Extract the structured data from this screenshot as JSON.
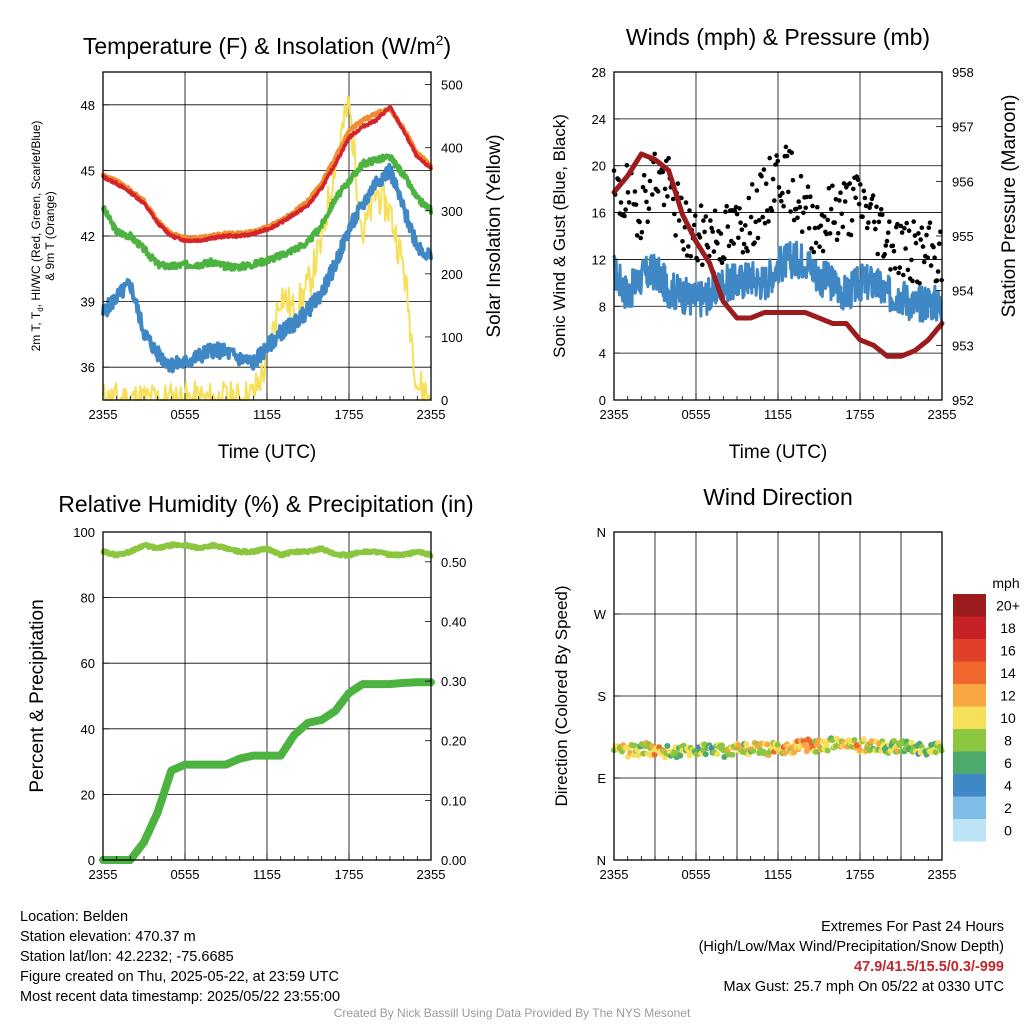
{
  "chart_data": [
    {
      "type": "line",
      "title": "Temperature (F) & Insolation (W/m²)",
      "title_main": "Temperature (F) & Insolation (W/m",
      "title_sup": "2",
      "title_end": ")",
      "xlabel": "Time (UTC)",
      "ylabel_line1": "2m T, T",
      "ylabel_sub": "d",
      "ylabel_line1_end": ", HI/WC (Red, Green, Scarlet/Blue)",
      "ylabel_line2": "& 9m T (Orange)",
      "y2label": "Solar Insolation (Yellow)",
      "x_ticks": [
        "2355",
        "0555",
        "1155",
        "1755",
        "2355"
      ],
      "y_ticks": [
        "36",
        "39",
        "42",
        "45",
        "48"
      ],
      "y2_ticks": [
        "0",
        "100",
        "200",
        "300",
        "400",
        "500"
      ],
      "ylim": [
        34.5,
        49.5
      ],
      "y2lim": [
        0,
        520
      ],
      "x_hours": [
        0,
        1,
        2,
        3,
        4,
        5,
        6,
        7,
        8,
        9,
        10,
        11,
        12,
        13,
        14,
        15,
        16,
        17,
        18,
        19,
        20,
        21,
        22,
        23,
        24
      ],
      "series": [
        {
          "key": "temperature",
          "color": "#d7242a",
          "values": [
            44.7,
            44.4,
            44.0,
            43.5,
            42.6,
            42.0,
            41.8,
            41.8,
            41.9,
            42.0,
            42.0,
            42.1,
            42.3,
            42.6,
            43.0,
            43.4,
            44.2,
            45.3,
            46.5,
            47.0,
            47.3,
            47.9,
            46.8,
            45.6,
            45.1
          ]
        },
        {
          "key": "temperature-9m",
          "color": "#f08c32",
          "values": [
            44.8,
            44.5,
            44.1,
            43.6,
            42.7,
            42.1,
            41.9,
            41.9,
            42.0,
            42.1,
            42.1,
            42.2,
            42.4,
            42.7,
            43.1,
            43.6,
            44.4,
            45.6,
            46.8,
            47.3,
            47.6,
            47.8,
            46.9,
            45.8,
            45.2
          ]
        },
        {
          "key": "dewpoint",
          "color": "#3f88c5",
          "values": [
            38.5,
            39.2,
            39.8,
            37.6,
            36.6,
            36.1,
            36.2,
            36.5,
            36.8,
            36.7,
            36.4,
            36.2,
            36.9,
            37.6,
            38.0,
            38.6,
            39.4,
            40.7,
            42.3,
            43.4,
            44.5,
            45.0,
            43.2,
            41.6,
            41.0
          ]
        },
        {
          "key": "heat-index-wind-chill",
          "color": "#4cb340",
          "values": [
            43.3,
            42.2,
            42.0,
            41.4,
            40.7,
            40.6,
            40.7,
            40.7,
            40.8,
            40.6,
            40.6,
            40.7,
            40.9,
            41.1,
            41.4,
            41.7,
            42.5,
            43.7,
            44.5,
            45.3,
            45.5,
            45.6,
            44.8,
            43.7,
            43.2
          ]
        },
        {
          "key": "solar-insolation",
          "color": "#f6e05a",
          "axis": "right",
          "values": [
            0,
            0,
            0,
            0,
            0,
            0,
            0,
            0,
            0,
            0,
            0,
            8,
            60,
            170,
            140,
            180,
            250,
            380,
            470,
            260,
            330,
            300,
            210,
            25,
            5
          ]
        }
      ]
    },
    {
      "type": "line",
      "title": "Winds (mph) & Pressure (mb)",
      "xlabel": "Time (UTC)",
      "ylabel": "Sonic Wind & Gust (Blue, Black)",
      "y2label": "Station Pressure (Maroon)",
      "x_ticks": [
        "2355",
        "0555",
        "1155",
        "1755",
        "2355"
      ],
      "y_ticks": [
        "0",
        "4",
        "8",
        "12",
        "16",
        "20",
        "24",
        "28"
      ],
      "y2_ticks": [
        "952",
        "953",
        "954",
        "955",
        "956",
        "957",
        "958"
      ],
      "ylim": [
        0,
        28
      ],
      "y2lim": [
        952,
        958
      ],
      "x_hours": [
        0,
        1,
        2,
        3,
        4,
        5,
        6,
        7,
        8,
        9,
        10,
        11,
        12,
        13,
        14,
        15,
        16,
        17,
        18,
        19,
        20,
        21,
        22,
        23,
        24
      ],
      "series": [
        {
          "key": "sonic-wind",
          "color": "#3f88c5",
          "values": [
            11.0,
            9.0,
            10.5,
            11.0,
            9.5,
            9.0,
            8.5,
            9.0,
            10.0,
            10.0,
            10.5,
            10.0,
            11.5,
            12.0,
            12.0,
            10.5,
            10.0,
            9.0,
            10.0,
            10.0,
            9.0,
            9.0,
            8.0,
            8.5,
            8.0
          ]
        },
        {
          "key": "gust",
          "color": "#000000",
          "values": [
            17.0,
            17.5,
            16.5,
            19.5,
            18.0,
            15.0,
            13.5,
            14.5,
            14.0,
            14.5,
            15.5,
            17.0,
            19.5,
            18.5,
            16.0,
            15.0,
            16.0,
            16.5,
            17.0,
            15.5,
            14.0,
            13.0,
            12.5,
            12.5,
            12.0
          ]
        },
        {
          "key": "station-pressure",
          "color": "#9b1b1e",
          "axis": "right",
          "values": [
            955.8,
            956.1,
            956.5,
            956.4,
            956.2,
            955.4,
            954.9,
            954.5,
            953.8,
            953.5,
            953.5,
            953.6,
            953.6,
            953.6,
            953.6,
            953.5,
            953.4,
            953.4,
            953.1,
            953.0,
            952.8,
            952.8,
            952.9,
            953.1,
            953.4
          ]
        }
      ]
    },
    {
      "type": "line",
      "title": "Relative Humidity (%) & Precipitation (in)",
      "xlabel": "",
      "ylabel": "Percent & Precipitation",
      "x_ticks": [
        "2355",
        "0555",
        "1155",
        "1755",
        "2355"
      ],
      "y_ticks": [
        "0",
        "20",
        "40",
        "60",
        "80",
        "100"
      ],
      "y2_ticks": [
        "0.00",
        "0.10",
        "0.20",
        "0.30",
        "0.40",
        "0.50"
      ],
      "ylim": [
        0,
        100
      ],
      "y2lim": [
        0,
        0.55
      ],
      "x_hours": [
        0,
        1,
        2,
        3,
        4,
        5,
        6,
        7,
        8,
        9,
        10,
        11,
        12,
        13,
        14,
        15,
        16,
        17,
        18,
        19,
        20,
        21,
        22,
        23,
        24
      ],
      "series": [
        {
          "key": "relative-humidity",
          "color": "#8cc63f",
          "values": [
            94,
            93,
            94,
            96,
            95,
            96,
            96,
            95,
            96,
            95,
            94,
            94,
            95,
            93,
            94,
            94,
            95,
            93,
            93,
            94,
            94,
            93,
            93,
            94,
            93
          ]
        },
        {
          "key": "precipitation",
          "color": "#4cb340",
          "axis": "right",
          "values": [
            0.0,
            0.0,
            0.0,
            0.03,
            0.08,
            0.15,
            0.16,
            0.16,
            0.16,
            0.16,
            0.17,
            0.175,
            0.175,
            0.175,
            0.21,
            0.23,
            0.235,
            0.25,
            0.28,
            0.295,
            0.295,
            0.295,
            0.297,
            0.298,
            0.298
          ]
        }
      ]
    },
    {
      "type": "scatter",
      "title": "Wind Direction",
      "xlabel": "",
      "ylabel": "Direction (Colored By Speed)",
      "x_ticks": [
        "2355",
        "0555",
        "1155",
        "1755",
        "2355"
      ],
      "y_ticks": [
        "N",
        "E",
        "S",
        "W",
        "N"
      ],
      "ylim": [
        0,
        360
      ],
      "direction_deg_hourly": [
        118,
        120,
        122,
        121,
        119,
        120,
        121,
        122,
        120,
        121,
        122,
        121,
        123,
        124,
        126,
        125,
        127,
        128,
        126,
        125,
        124,
        125,
        123,
        122,
        122
      ],
      "speed_mph_hourly": [
        9,
        11,
        10,
        12,
        10,
        9,
        9,
        8,
        10,
        11,
        10,
        11,
        12,
        12,
        13,
        11,
        10,
        11,
        12,
        10,
        9,
        10,
        8,
        9,
        8
      ],
      "colorbar": {
        "unit": "mph",
        "labels": [
          "20+",
          "18",
          "16",
          "14",
          "12",
          "10",
          "8",
          "6",
          "4",
          "2",
          "0"
        ],
        "colors": [
          "#9b1b1e",
          "#c62126",
          "#e0402a",
          "#f0672d",
          "#f8a743",
          "#f6e05a",
          "#8cc63f",
          "#4cab6c",
          "#3f88c5",
          "#7fbde6",
          "#bde3f7"
        ]
      }
    }
  ],
  "info": {
    "location": "Location: Belden",
    "elevation": "Station elevation: 470.37 m",
    "latlon": "Station lat/lon: 42.2232; -75.6685",
    "created": "Figure created on Thu, 2025-05-22, at 23:59 UTC",
    "recent": "Most recent data timestamp: 2025/05/22 23:55:00"
  },
  "extremes": {
    "title": "Extremes For Past 24 Hours",
    "subtitle": "(High/Low/Max Wind/Precipitation/Snow Depth)",
    "values": "47.9/41.5/15.5/0.3/-999",
    "gust": "Max Gust: 25.7 mph On 05/22 at 0330 UTC"
  },
  "credit": "Created By Nick Bassill Using Data Provided By The NYS Mesonet"
}
